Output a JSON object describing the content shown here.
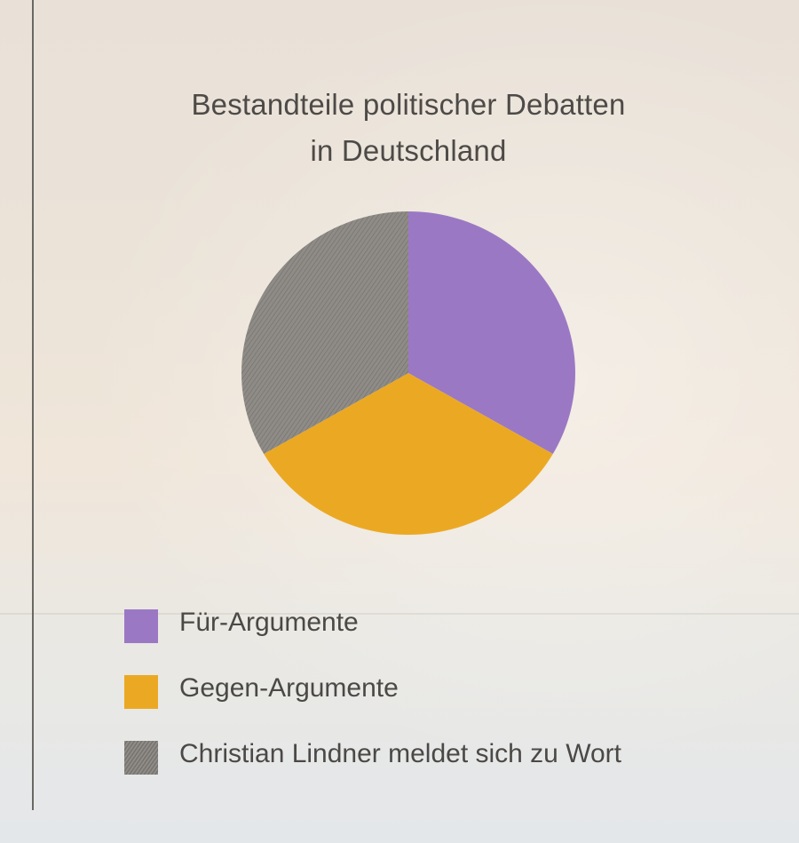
{
  "chart_data": {
    "type": "pie",
    "title": "Bestandteile politischer Debatten in Deutschland",
    "title_lines": [
      "Bestandteile politischer Debatten",
      "in Deutschland"
    ],
    "slices": [
      {
        "label": "Für-Argumente",
        "value": 33.3,
        "color": "#9b78c4"
      },
      {
        "label": "Gegen-Argumente",
        "value": 33.3,
        "color": "#eba923"
      },
      {
        "label": "Christian Lindner meldet sich zu Wort",
        "value": 33.3,
        "color": "#8e8b87"
      }
    ],
    "legend_placement": "bottom-left"
  }
}
